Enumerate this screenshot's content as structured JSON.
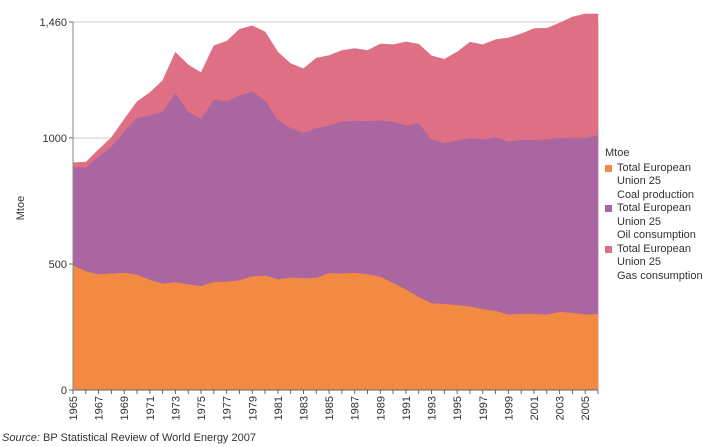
{
  "chart_data": {
    "type": "area",
    "stacked": true,
    "ylabel": "Mtoe",
    "ylim": [
      0,
      1460
    ],
    "yticks": [
      "0",
      "500",
      "1000",
      "1,460"
    ],
    "ytick_values": [
      0,
      500,
      1000,
      1460
    ],
    "x": [
      1965,
      1966,
      1967,
      1968,
      1969,
      1970,
      1971,
      1972,
      1973,
      1974,
      1975,
      1976,
      1977,
      1978,
      1979,
      1980,
      1981,
      1982,
      1983,
      1984,
      1985,
      1986,
      1987,
      1988,
      1989,
      1990,
      1991,
      1992,
      1993,
      1994,
      1995,
      1996,
      1997,
      1998,
      1999,
      2000,
      2001,
      2002,
      2003,
      2004,
      2005,
      2006
    ],
    "xticks": [
      "1965",
      "1967",
      "1969",
      "1971",
      "1973",
      "1975",
      "1977",
      "1979",
      "1981",
      "1983",
      "1985",
      "1987",
      "1989",
      "1991",
      "1993",
      "1995",
      "1997",
      "1999",
      "2001",
      "2003",
      "2005"
    ],
    "grid": true,
    "legend_title": "Mtoe",
    "legend_position": "right",
    "series": [
      {
        "name": "Total European Union 25\nCoal production",
        "color": "#f28a44",
        "values": [
          495,
          472,
          460,
          463,
          466,
          458,
          438,
          423,
          428,
          420,
          413,
          430,
          430,
          436,
          452,
          455,
          440,
          447,
          444,
          446,
          465,
          463,
          466,
          460,
          450,
          425,
          400,
          370,
          345,
          342,
          338,
          332,
          322,
          315,
          300,
          303,
          303,
          300,
          311,
          307,
          300,
          302
        ]
      },
      {
        "name": "Total European Union 25\nOil consumption",
        "color": "#aa66a0",
        "values": [
          390,
          412,
          467,
          504,
          560,
          622,
          652,
          682,
          752,
          684,
          663,
          723,
          716,
          733,
          733,
          694,
          632,
          593,
          577,
          593,
          585,
          603,
          603,
          608,
          620,
          640,
          650,
          690,
          650,
          638,
          653,
          668,
          673,
          688,
          687,
          690,
          690,
          695,
          690,
          693,
          700,
          710
        ]
      },
      {
        "name": "Total European Union 25\nGas consumption",
        "color": "#de6f85",
        "values": [
          17,
          20,
          27,
          35,
          48,
          64,
          90,
          123,
          160,
          186,
          183,
          213,
          238,
          262,
          260,
          272,
          269,
          255,
          254,
          278,
          277,
          281,
          286,
          279,
          303,
          305,
          331,
          312,
          331,
          332,
          350,
          380,
          375,
          387,
          410,
          420,
          441,
          440,
          455,
          480,
          492,
          480
        ]
      }
    ]
  },
  "source": {
    "label": "Source:",
    "text": "BP Statistical Review of World Energy 2007"
  }
}
